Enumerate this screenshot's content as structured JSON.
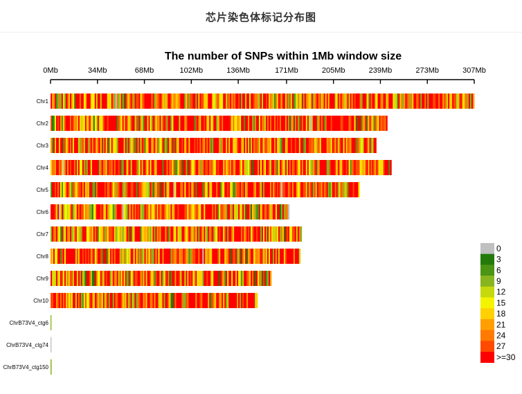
{
  "page_heading": "芯片染色体标记分布图",
  "chart_data": {
    "type": "heatmap",
    "title": "The number of SNPs within 1Mb window size",
    "x_axis": {
      "ticks": [
        "0Mb",
        "34Mb",
        "68Mb",
        "102Mb",
        "136Mb",
        "171Mb",
        "205Mb",
        "239Mb",
        "273Mb",
        "307Mb"
      ],
      "tick_values_mb": [
        0,
        34,
        68,
        102,
        136,
        171,
        205,
        239,
        273,
        307
      ],
      "range_mb": [
        0,
        307
      ],
      "position": "top"
    },
    "chromosomes": [
      {
        "name": "Chr1",
        "length_mb": 307,
        "texture": "mixed"
      },
      {
        "name": "Chr2",
        "length_mb": 244,
        "texture": "mixed"
      },
      {
        "name": "Chr3",
        "length_mb": 236,
        "texture": "mixed"
      },
      {
        "name": "Chr4",
        "length_mb": 247,
        "texture": "mixed"
      },
      {
        "name": "Chr5",
        "length_mb": 224,
        "texture": "mixed"
      },
      {
        "name": "Chr6",
        "length_mb": 173,
        "texture": "mixed"
      },
      {
        "name": "Chr7",
        "length_mb": 182,
        "texture": "mixed"
      },
      {
        "name": "Chr8",
        "length_mb": 181,
        "texture": "mixed"
      },
      {
        "name": "Chr9",
        "length_mb": 160,
        "texture": "mixed"
      },
      {
        "name": "Chr10",
        "length_mb": 150,
        "texture": "mixed"
      },
      {
        "name": "ChrB73V4_ctg6",
        "length_mb": 0.5,
        "texture": "low"
      },
      {
        "name": "ChrB73V4_ctg74",
        "length_mb": 0.5,
        "texture": "low"
      },
      {
        "name": "ChrB73V4_ctg150",
        "length_mb": 0.6,
        "texture": "low"
      }
    ],
    "legend": {
      "placement": "right",
      "bins": [
        {
          "label": "0",
          "color": "#c0c0c0"
        },
        {
          "label": "3",
          "color": "#237a0a"
        },
        {
          "label": "6",
          "color": "#4c9414"
        },
        {
          "label": "9",
          "color": "#88b51f"
        },
        {
          "label": "12",
          "color": "#c6d90c"
        },
        {
          "label": "15",
          "color": "#f4f400"
        },
        {
          "label": "18",
          "color": "#ffd100"
        },
        {
          "label": "21",
          "color": "#ff9e00"
        },
        {
          "label": "24",
          "color": "#ff7a00"
        },
        {
          "label": "27",
          "color": "#ff4a00"
        },
        {
          "label": ">=30",
          "color": "#ff0000"
        }
      ]
    }
  }
}
